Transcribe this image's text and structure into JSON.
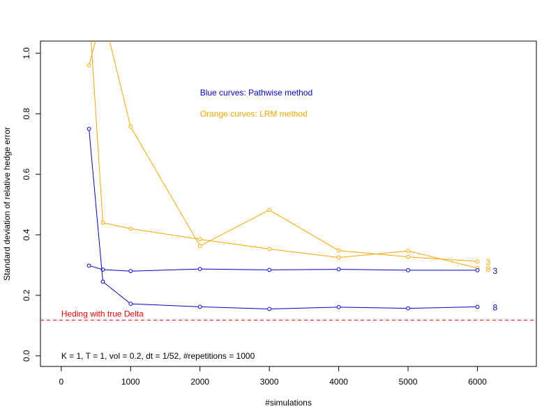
{
  "chart_data": {
    "type": "line",
    "title": "",
    "xlabel": "#simulations",
    "ylabel": "Standard deviation of relative hedge error",
    "xlim": [
      -300,
      6850
    ],
    "ylim": [
      -0.035,
      1.04
    ],
    "x_ticks": [
      0,
      1000,
      2000,
      3000,
      4000,
      5000,
      6000
    ],
    "x_tick_labels": [
      "0",
      "1000",
      "2000",
      "3000",
      "4000",
      "5000",
      "6000"
    ],
    "y_ticks": [
      0.0,
      0.2,
      0.4,
      0.6,
      0.8,
      1.0
    ],
    "y_tick_labels": [
      "0.0",
      "0.2",
      "0.4",
      "0.6",
      "0.8",
      "1.0"
    ],
    "grid": false,
    "x": [
      400,
      600,
      1000,
      2000,
      3000,
      4000,
      5000,
      6000
    ],
    "series": [
      {
        "label": "3",
        "color": "#ffa500",
        "values": [
          0.96,
          1.13,
          0.757,
          0.363,
          0.482,
          0.348,
          0.327,
          0.312
        ]
      },
      {
        "label": "8",
        "color": "#ffa500",
        "values": [
          1.15,
          0.44,
          0.42,
          0.385,
          0.353,
          0.325,
          0.347,
          0.29
        ]
      },
      {
        "label": "3",
        "color": "#0000cd",
        "values": [
          0.298,
          0.285,
          0.28,
          0.287,
          0.284,
          0.286,
          0.283,
          0.283
        ]
      },
      {
        "label": "8",
        "color": "#0000cd",
        "values": [
          0.75,
          0.245,
          0.172,
          0.162,
          0.155,
          0.161,
          0.157,
          0.162
        ]
      }
    ],
    "reference_line": {
      "value": 0.118,
      "color": "#ff0000",
      "style": "dashed",
      "label": "Heding with true Delta"
    },
    "annotations": [
      {
        "text": "Blue curves: Pathwise method",
        "color": "#0000cd",
        "x": 2000,
        "y": 0.87
      },
      {
        "text": "Orange curves: LRM method",
        "color": "#ffa500",
        "x": 2000,
        "y": 0.8
      },
      {
        "text": "K = 1, T = 1, vol = 0.2, dt = 1/52, #repetitions = 1000",
        "color": "#000000",
        "x": 0,
        "y": 0.0
      }
    ]
  }
}
